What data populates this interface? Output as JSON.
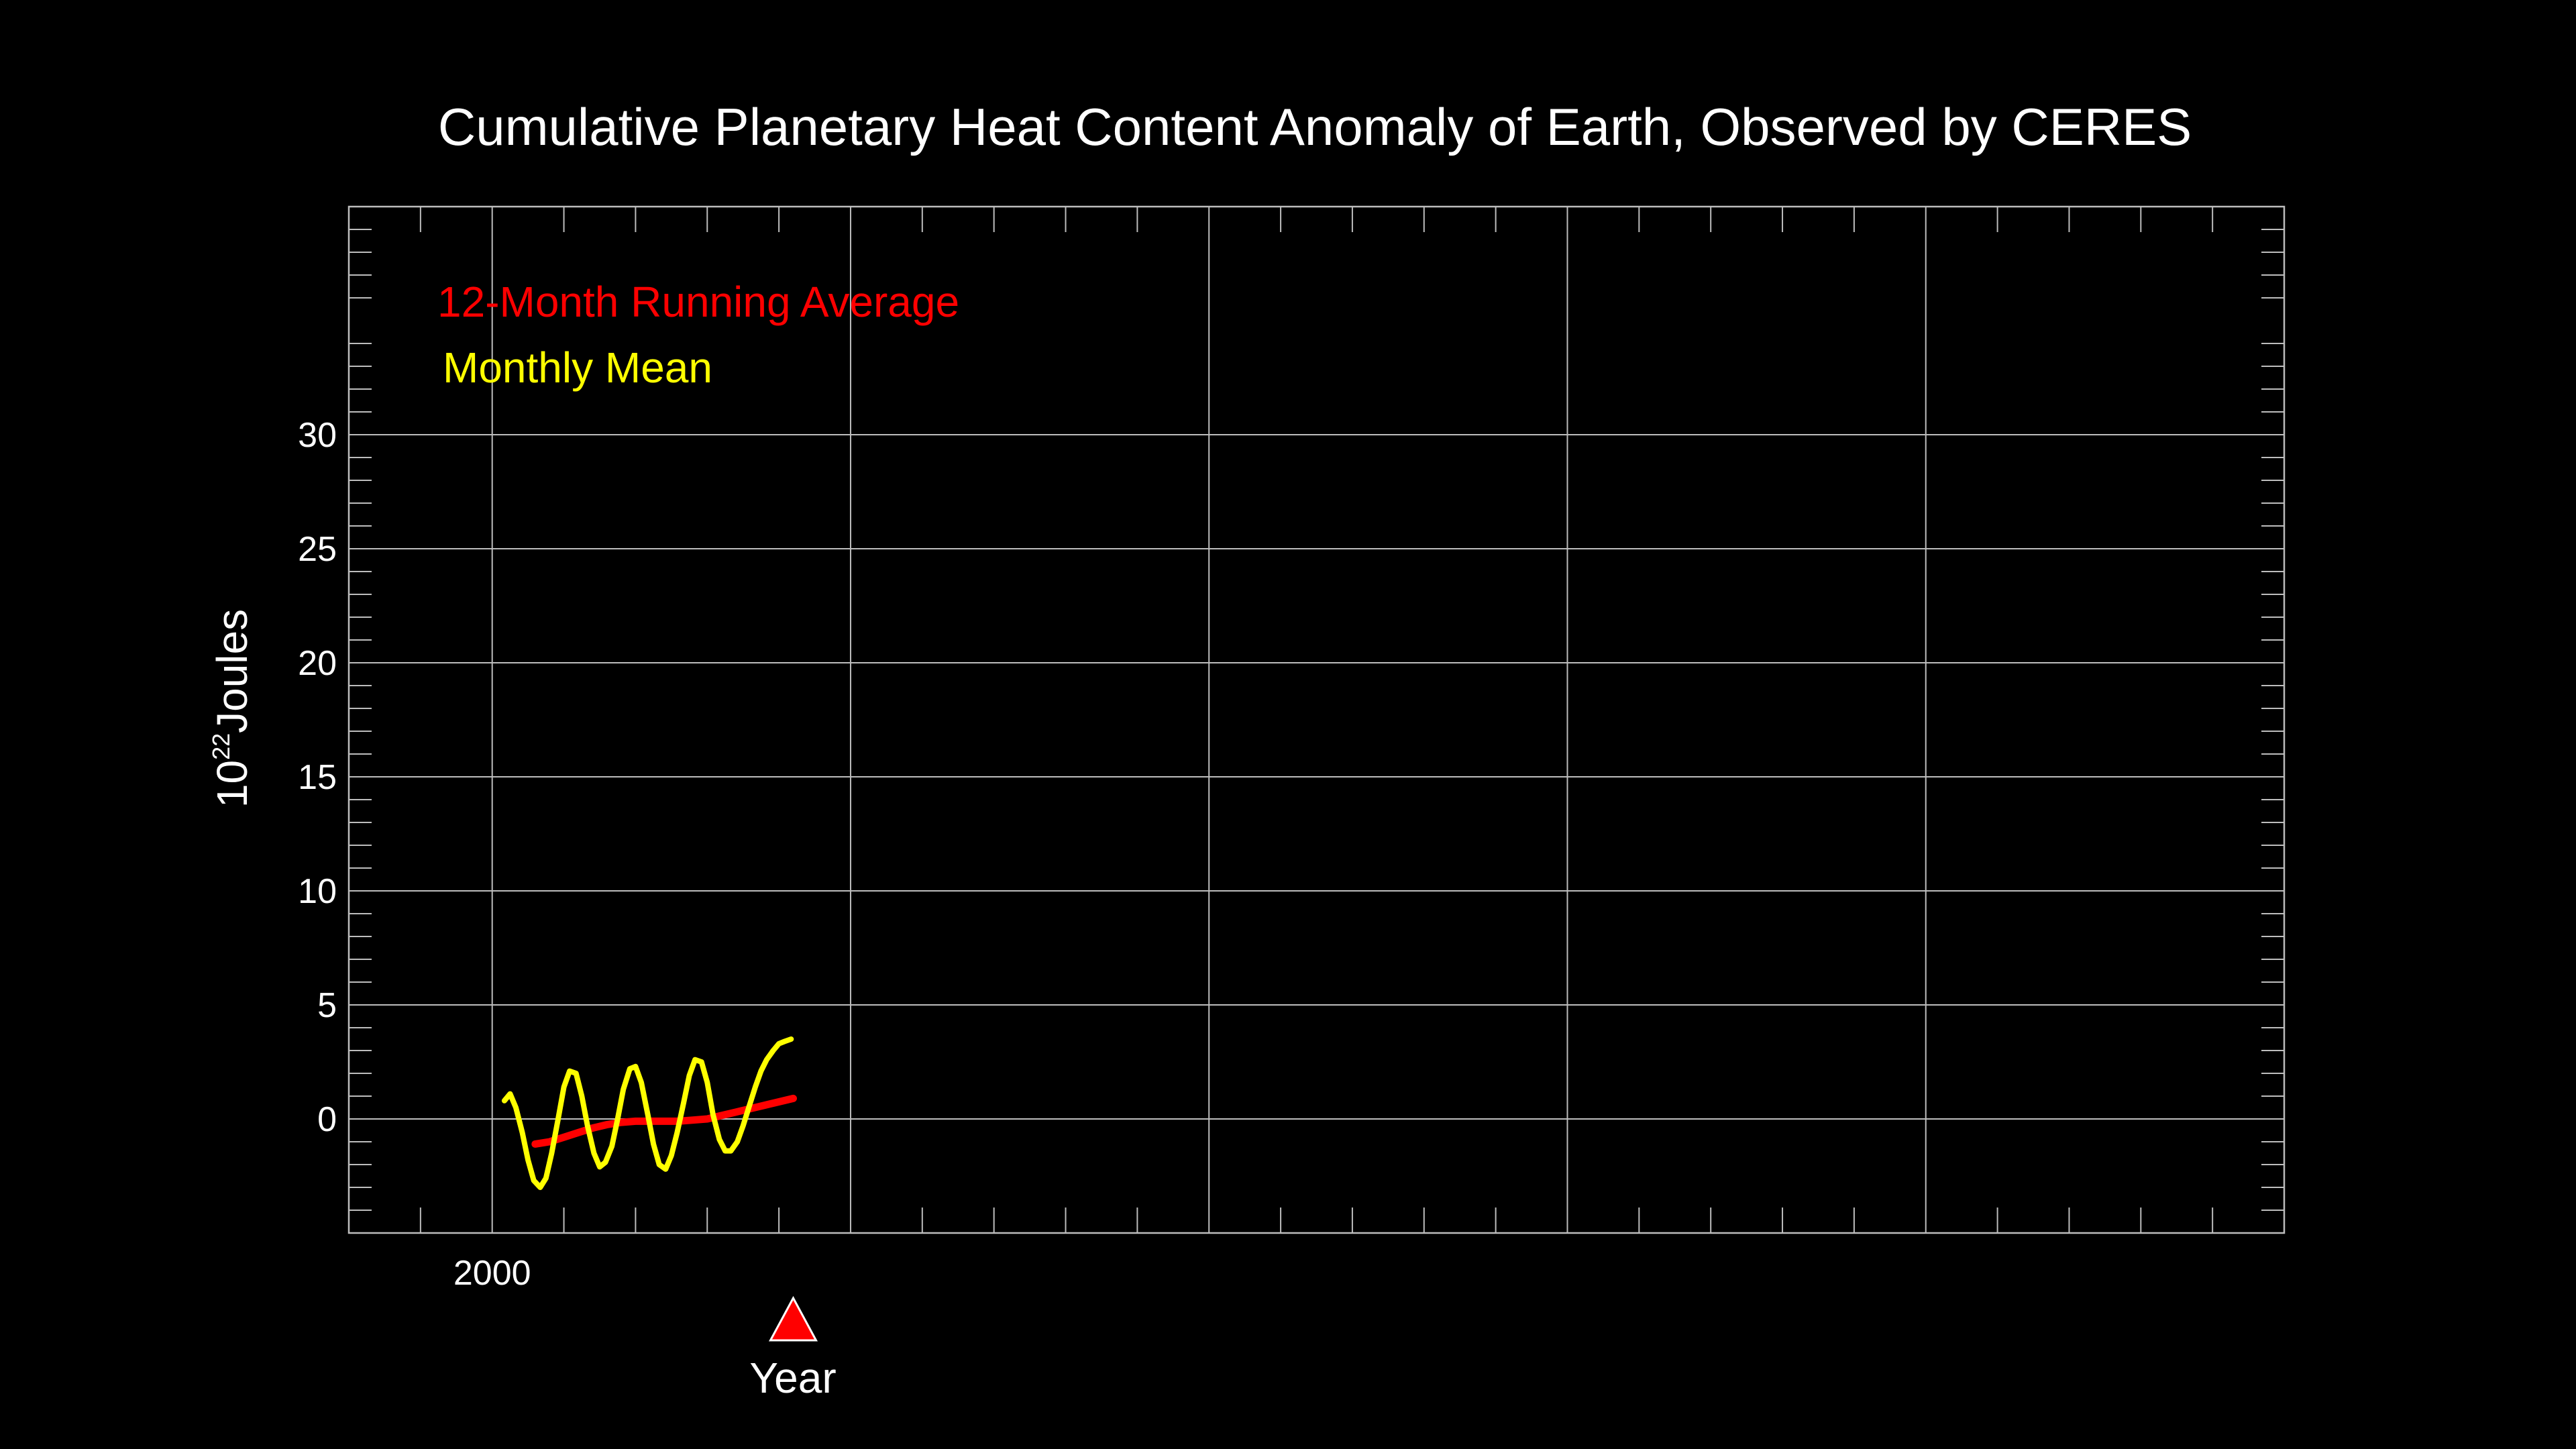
{
  "chart_data": {
    "type": "line",
    "title": "Cumulative Planetary Heat Content Anomaly of Earth, Observed by CERES",
    "ylabel_base": "10",
    "ylabel_exponent": "22",
    "ylabel_unit": "Joules",
    "xlabel": "Year",
    "xlim": [
      1998,
      2025
    ],
    "ylim": [
      -5,
      40
    ],
    "y_ticks": [
      0,
      5,
      10,
      15,
      20,
      25,
      30
    ],
    "x_ticks": [
      2000,
      2005,
      2010,
      2015,
      2020,
      2025
    ],
    "x_tick_labels": [
      "2000"
    ],
    "grid": true,
    "legend": {
      "placement": "top-left",
      "entries": [
        {
          "name": "12-Month Running Average",
          "color": "#ff0000"
        },
        {
          "name": "Monthly Mean",
          "color": "#ffff00"
        }
      ]
    },
    "marker": {
      "shape": "triangle",
      "color": "#ff0000",
      "x": 2004.2
    },
    "series": [
      {
        "name": "Monthly Mean",
        "color": "#ffff00",
        "x": [
          2000.17,
          2000.25,
          2000.33,
          2000.42,
          2000.5,
          2000.58,
          2000.67,
          2000.75,
          2000.83,
          2000.92,
          2001.0,
          2001.08,
          2001.17,
          2001.25,
          2001.33,
          2001.42,
          2001.5,
          2001.58,
          2001.67,
          2001.75,
          2001.83,
          2001.92,
          2002.0,
          2002.08,
          2002.17,
          2002.25,
          2002.33,
          2002.42,
          2002.5,
          2002.58,
          2002.67,
          2002.75,
          2002.83,
          2002.92,
          2003.0,
          2003.08,
          2003.17,
          2003.25,
          2003.33,
          2003.42,
          2003.5,
          2003.58,
          2003.67,
          2003.75,
          2003.83,
          2003.92,
          2004.0,
          2004.08,
          2004.17
        ],
        "y": [
          0.8,
          1.1,
          0.5,
          -0.6,
          -1.8,
          -2.7,
          -3.0,
          -2.6,
          -1.5,
          0.0,
          1.4,
          2.1,
          2.0,
          1.0,
          -0.3,
          -1.5,
          -2.1,
          -1.9,
          -1.2,
          0.0,
          1.3,
          2.2,
          2.3,
          1.6,
          0.2,
          -1.1,
          -2.0,
          -2.2,
          -1.6,
          -0.6,
          0.7,
          1.9,
          2.6,
          2.5,
          1.6,
          0.2,
          -0.9,
          -1.4,
          -1.4,
          -1.0,
          -0.3,
          0.5,
          1.4,
          2.1,
          2.6,
          3.0,
          3.3,
          3.4,
          3.5
        ]
      },
      {
        "name": "12-Month Running Average",
        "color": "#ff0000",
        "x": [
          2000.6,
          2000.8,
          2001.0,
          2001.2,
          2001.4,
          2001.6,
          2001.8,
          2002.0,
          2002.2,
          2002.4,
          2002.6,
          2002.8,
          2003.0,
          2003.2,
          2003.4,
          2003.6,
          2003.8,
          2004.0,
          2004.2
        ],
        "y": [
          -1.1,
          -1.0,
          -0.8,
          -0.6,
          -0.4,
          -0.25,
          -0.15,
          -0.1,
          -0.1,
          -0.1,
          -0.1,
          -0.05,
          0.0,
          0.15,
          0.3,
          0.45,
          0.6,
          0.75,
          0.9
        ]
      }
    ]
  }
}
